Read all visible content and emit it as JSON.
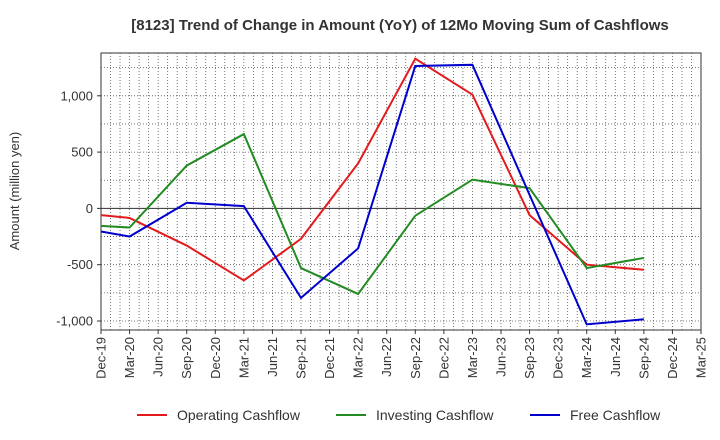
{
  "chart_data": {
    "type": "line",
    "title": "[8123]  Trend of Change in Amount (YoY) of 12Mo Moving Sum of Cashflows",
    "xlabel": "",
    "ylabel": "Amount (million yen)",
    "ylim": [
      -1080,
      1380
    ],
    "yticks": [
      -1000,
      -500,
      0,
      500,
      1000
    ],
    "ytick_labels": [
      "-1,000",
      "-500",
      "0",
      "500",
      "1,000"
    ],
    "categories": [
      "Dec-19",
      "Mar-20",
      "Jun-20",
      "Sep-20",
      "Dec-20",
      "Mar-21",
      "Jun-21",
      "Sep-21",
      "Dec-21",
      "Mar-22",
      "Jun-22",
      "Sep-22",
      "Dec-22",
      "Mar-23",
      "Jun-23",
      "Sep-23",
      "Dec-23",
      "Mar-24",
      "Jun-24",
      "Sep-24",
      "Dec-24",
      "Mar-25"
    ],
    "grid": true,
    "legend_position": "bottom",
    "series": [
      {
        "name": "Operating Cashflow",
        "color": "#e41a1c",
        "values": [
          -60,
          -85,
          null,
          -330,
          null,
          -640,
          null,
          -270,
          null,
          400,
          null,
          1330,
          null,
          1010,
          null,
          -60,
          null,
          -500,
          null,
          -545,
          null,
          null
        ]
      },
      {
        "name": "Investing Cashflow",
        "color": "#228b22",
        "values": [
          -155,
          -170,
          null,
          380,
          null,
          660,
          null,
          -530,
          null,
          -760,
          null,
          -65,
          null,
          255,
          null,
          180,
          null,
          -530,
          null,
          -440,
          null,
          null
        ]
      },
      {
        "name": "Free Cashflow",
        "color": "#0000cc",
        "values": [
          -205,
          -250,
          null,
          50,
          null,
          20,
          null,
          -795,
          null,
          -355,
          null,
          1265,
          null,
          1275,
          null,
          120,
          null,
          -1030,
          null,
          -985,
          null,
          null
        ]
      }
    ]
  }
}
